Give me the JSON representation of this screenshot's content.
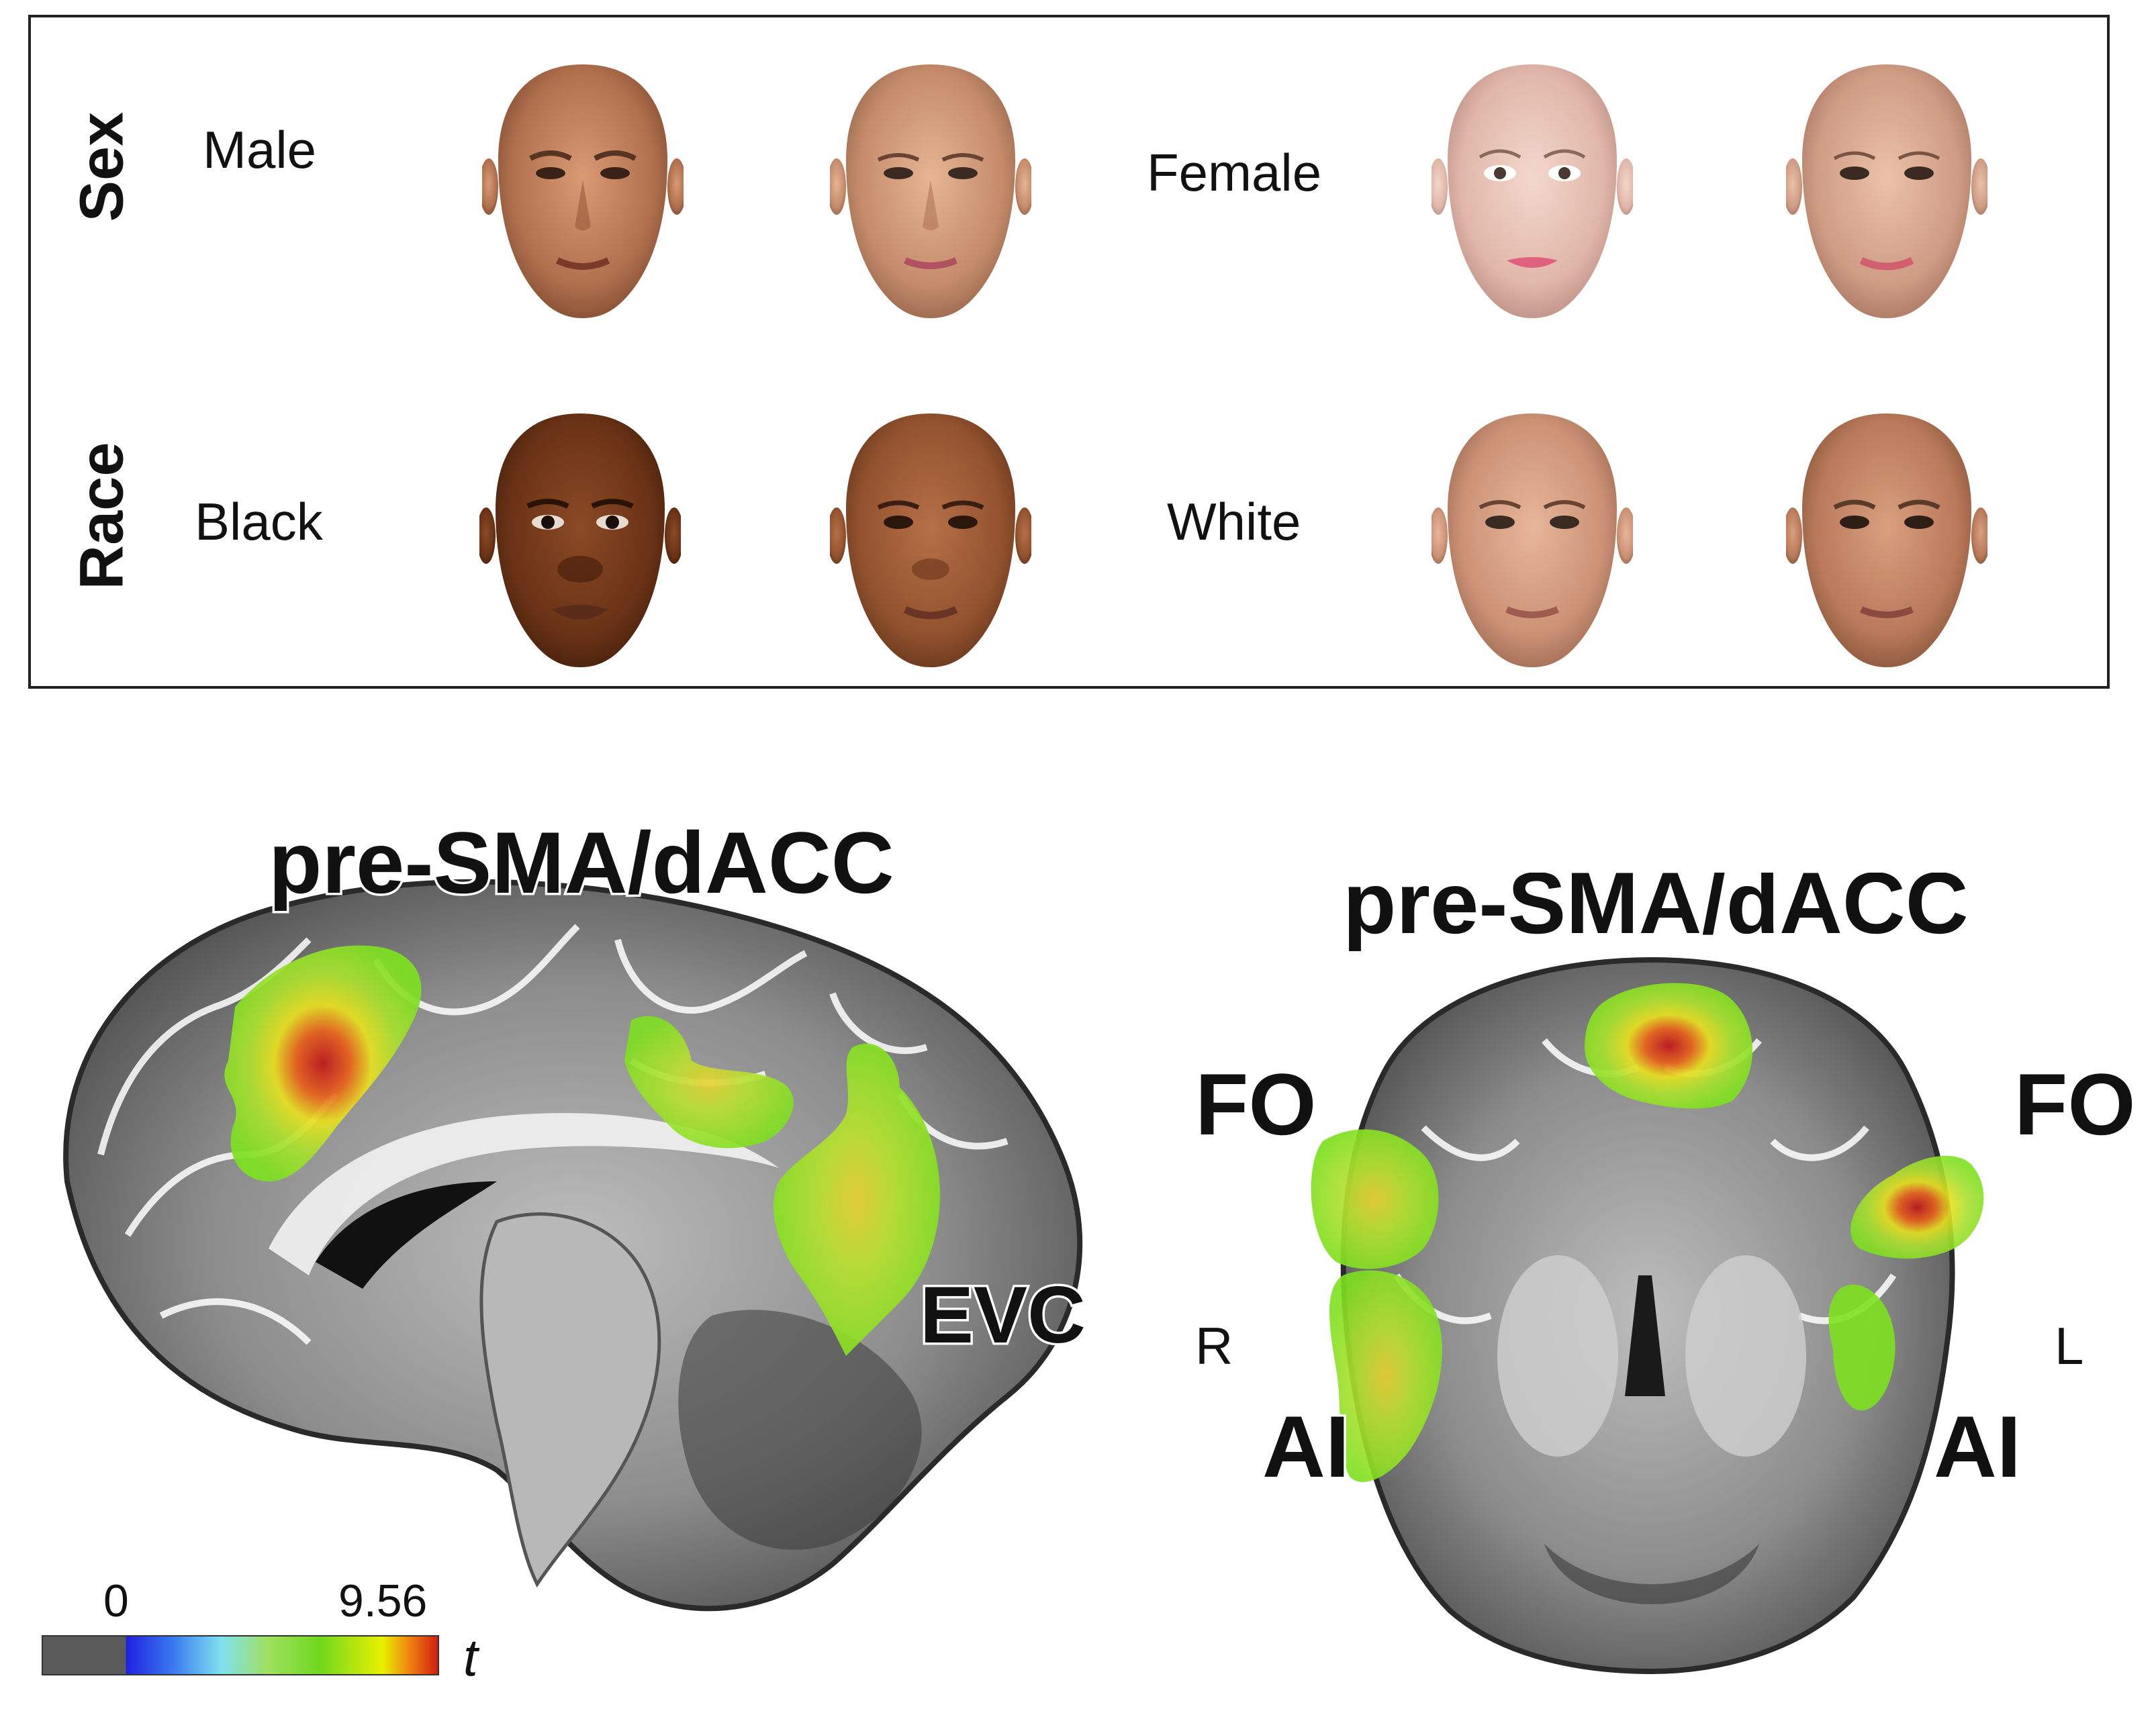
{
  "panel_a": {
    "rows": [
      {
        "label": "Sex",
        "left_category": "Male",
        "right_category": "Female"
      },
      {
        "label": "Race",
        "left_category": "Black",
        "right_category": "White"
      }
    ],
    "faces": [
      {
        "row": "Sex",
        "desc": "male-prototype"
      },
      {
        "row": "Sex",
        "desc": "male-morph"
      },
      {
        "row": "Sex",
        "desc": "female-prototype"
      },
      {
        "row": "Sex",
        "desc": "female-morph"
      },
      {
        "row": "Race",
        "desc": "black-prototype"
      },
      {
        "row": "Race",
        "desc": "black-morph"
      },
      {
        "row": "Race",
        "desc": "white-prototype"
      },
      {
        "row": "Race",
        "desc": "white-morph"
      }
    ]
  },
  "panel_b": {
    "sagittal": {
      "labels": {
        "top": "pre-SMA/dACC",
        "posterior": "EVC"
      }
    },
    "coronal": {
      "labels": {
        "top": "pre-SMA/dACC",
        "fo_right": "FO",
        "fo_left": "FO",
        "ai_right": "AI",
        "ai_left": "AI"
      },
      "side_right": "R",
      "side_left": "L"
    },
    "colorbar": {
      "min": "0",
      "max": "9.56",
      "unit": "t"
    }
  },
  "colors": {
    "activation_low": "#7ee020",
    "activation_mid": "#e8e020",
    "activation_high": "#c0141a"
  }
}
